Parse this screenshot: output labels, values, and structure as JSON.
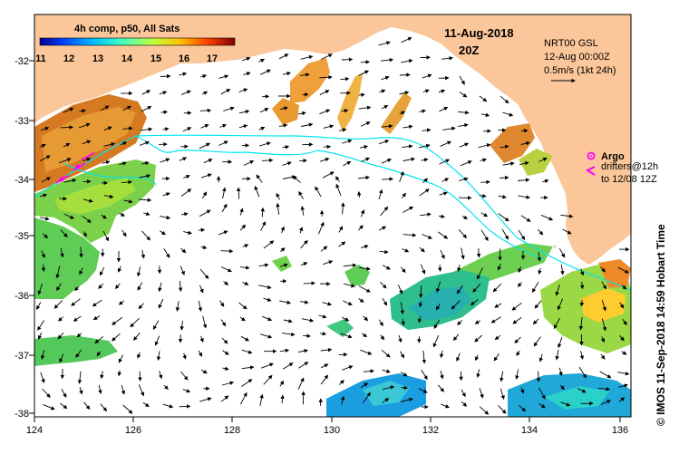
{
  "map": {
    "composite_label": "4h comp, p50, All Sats",
    "date": "11-Aug-2018",
    "time": "20Z",
    "sea_level_product": "NRT00 GSL",
    "sea_level_date": "12-Aug 00:00Z",
    "current_scale": "0.5m/s (1kt 24h)",
    "argo_label": "Argo",
    "drifter_label_line1": "drifters@12h",
    "drifter_label_line2": "to 12/08 12Z",
    "credit": "© IMOS 11-Sep-2018 14:59 Hobart Time",
    "colorbar_ticks": [
      "11",
      "12",
      "13",
      "14",
      "15",
      "16",
      "17"
    ],
    "lon_ticks": [
      "124",
      "126",
      "128",
      "130",
      "132",
      "134",
      "136"
    ],
    "lat_ticks": [
      "-32",
      "-33",
      "-34",
      "-35",
      "-36",
      "-37",
      "-38"
    ]
  },
  "colors": {
    "land": "#fbc79a",
    "sea": "#ffffff",
    "contour": "#00e5ee",
    "argo": "#ff00ff"
  },
  "icons": {
    "argo": "argo-float-icon",
    "drifter": "drifter-track-icon",
    "arrow": "current-arrow-icon"
  }
}
